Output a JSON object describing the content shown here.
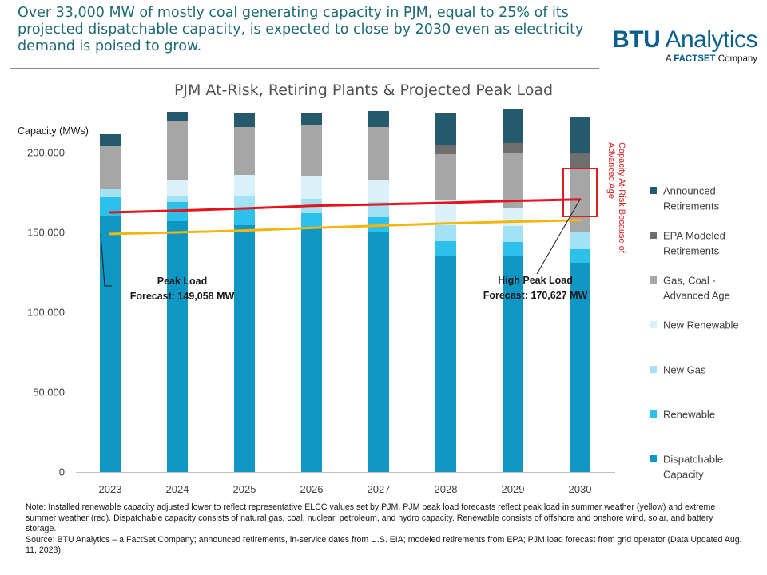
{
  "headline": "Over 33,000 MW of mostly coal generating capacity in PJM, equal to 25% of its projected dispatchable capacity, is expected to close by 2030 even as electricity demand is poised to grow.",
  "logo": {
    "main_bold": "BTU",
    "main_rest": " Analytics",
    "sub_prefix": "A ",
    "sub_brand": "FACTSET",
    "sub_suffix": " Company"
  },
  "colors": {
    "announced": "#245a6c",
    "epa": "#6e6e6e",
    "gas_coal": "#a6a6a6",
    "new_renewable": "#daf1fa",
    "new_gas": "#a3e1f5",
    "renewable": "#2cc0ea",
    "dispatchable": "#0f96c2",
    "peak_load_line": "#f5b50f",
    "high_peak_line": "#e8121b",
    "callout_box": "#d81e1e"
  },
  "chart_data": {
    "type": "bar",
    "title": "PJM At-Risk, Retiring Plants & Projected Peak Load",
    "ylabel": "Capacity (MWs)",
    "ylim": [
      0,
      225000
    ],
    "yticks": [
      0,
      50000,
      100000,
      150000,
      200000
    ],
    "ytick_labels": [
      "0",
      "50,000",
      "100,000",
      "150,000",
      "200,000"
    ],
    "categories": [
      "2023",
      "2024",
      "2025",
      "2026",
      "2027",
      "2028",
      "2029",
      "2030"
    ],
    "series": [
      {
        "name": "Dispatchable Capacity",
        "color_key": "dispatchable",
        "values": [
          160000,
          157000,
          154500,
          153000,
          150000,
          135500,
          135500,
          131000
        ]
      },
      {
        "name": "Renewable",
        "color_key": "renewable",
        "values": [
          12000,
          12000,
          10000,
          9000,
          9500,
          9000,
          8500,
          8500
        ]
      },
      {
        "name": "New Gas",
        "color_key": "new_gas",
        "values": [
          5000,
          3500,
          8000,
          9000,
          9500,
          10000,
          10000,
          10500
        ]
      },
      {
        "name": "New Renewable",
        "color_key": "new_renewable",
        "values": [
          0,
          10000,
          13500,
          14000,
          14000,
          15500,
          11500,
          0
        ]
      },
      {
        "name": "Gas, Coal - Advanced Age",
        "color_key": "gas_coal",
        "values": [
          27000,
          37000,
          30000,
          32000,
          33000,
          29000,
          34000,
          40000
        ]
      },
      {
        "name": "EPA Modeled Retirements",
        "color_key": "epa",
        "values": [
          0,
          0,
          0,
          0,
          0,
          6000,
          6500,
          10000
        ]
      },
      {
        "name": "Announced Retirements",
        "color_key": "announced",
        "values": [
          7500,
          6000,
          9000,
          7500,
          10000,
          20000,
          21000,
          22000
        ]
      }
    ],
    "lines": [
      {
        "name": "Peak Load",
        "color_key": "peak_load_line",
        "values": [
          149058,
          150000,
          151200,
          152800,
          154200,
          155600,
          156700,
          157600
        ]
      },
      {
        "name": "High Peak Load",
        "color_key": "high_peak_line",
        "values": [
          162500,
          163600,
          165000,
          166600,
          167500,
          168500,
          169700,
          170627
        ]
      }
    ],
    "annotations": {
      "peak_load": {
        "line1": "Peak Load",
        "line2": "Forecast: 149,058 MW",
        "category": "2023",
        "value": 149058
      },
      "high_peak_load": {
        "line1": "High Peak Load",
        "line2": "Forecast: 170,627 MW",
        "category": "2030",
        "value": 170627
      },
      "at_risk_box": {
        "category": "2030",
        "from": 160000,
        "to": 190000
      },
      "at_risk_label": {
        "line1": "Capacity At-Risk Because of",
        "line2": "Advanced Age"
      }
    },
    "legend_position": "right",
    "legend_order": [
      "Announced Retirements",
      "EPA Modeled Retirements",
      "Gas, Coal - Advanced Age",
      "New Renewable",
      "New Gas",
      "Renewable",
      "Dispatchable Capacity"
    ],
    "legend_labels": [
      [
        "Announced",
        "Retirements"
      ],
      [
        "EPA Modeled",
        "Retirements"
      ],
      [
        "Gas, Coal -",
        "Advanced Age"
      ],
      [
        "New Renewable"
      ],
      [
        "New Gas"
      ],
      [
        "Renewable"
      ],
      [
        "Dispatchable",
        "Capacity"
      ]
    ],
    "grid": false
  },
  "notes": {
    "note": "Note:  Installed renewable capacity adjusted lower to reflect representative ELCC  values set by PJM. PJM peak load forecasts reflect peak load in summer weather (yellow) and extreme  summer weather (red). Dispatchable capacity consists of natural gas, coal, nuclear, petroleum, and hydro capacity. Renewable consists of offshore and onshore wind, solar, and battery storage.",
    "source": "Source: BTU Analytics – a FactSet Company; announced retirements, in-service dates from U.S. EIA; modeled retirements from EPA; PJM load forecast from grid operator (Data Updated Aug. 11, 2023)"
  }
}
